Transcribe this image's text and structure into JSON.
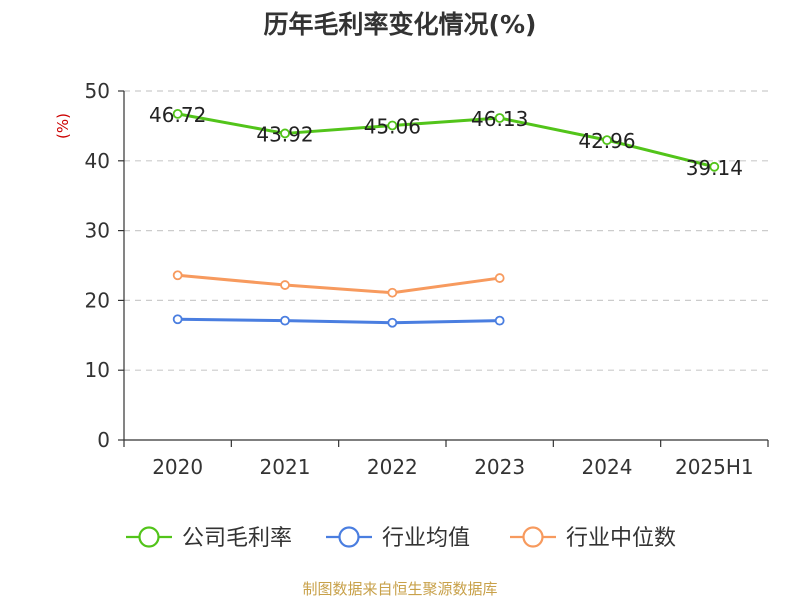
{
  "chart_data": {
    "type": "line",
    "title": "历年毛利率变化情况(%)",
    "ylabel": "(%)",
    "categories": [
      "2020",
      "2021",
      "2022",
      "2023",
      "2024",
      "2025H1"
    ],
    "ylim": [
      0,
      50
    ],
    "yticks": [
      0,
      10,
      20,
      30,
      40,
      50
    ],
    "grid": true,
    "legend_position": "bottom",
    "series": [
      {
        "name": "公司毛利率",
        "color": "#52c41a",
        "values": [
          46.72,
          43.92,
          45.06,
          46.13,
          42.96,
          39.14
        ],
        "labels": [
          "46.72",
          "43.92",
          "45.06",
          "46.13",
          "42.96",
          "39.14"
        ]
      },
      {
        "name": "行业均值",
        "color": "#4a7ee0",
        "values": [
          17.3,
          17.1,
          16.8,
          17.1,
          null,
          null
        ]
      },
      {
        "name": "行业中位数",
        "color": "#f79a5e",
        "values": [
          23.6,
          22.2,
          21.1,
          23.2,
          null,
          null
        ]
      }
    ]
  },
  "source": "制图数据来自恒生聚源数据库"
}
